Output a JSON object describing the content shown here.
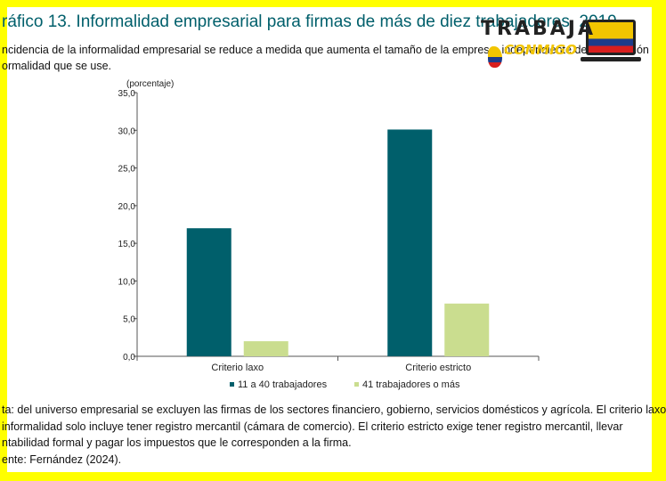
{
  "figure": {
    "title": "ráfico 13. Informalidad empresarial para firmas de más de diez trabajadores, 2019",
    "subtitle": "ncidencia de la informalidad empresarial se reduce a medida que aumenta el tamaño de la empresa, independiente de la definición ormalidad que se use.",
    "note_lines": [
      "ta: del universo empresarial se excluyen las firmas de los sectores financiero, gobierno, servicios domésticos y agrícola. El criterio laxo",
      " informalidad solo incluye tener registro mercantil (cámara de comercio). El criterio estricto exige tener registro mercantil, llevar",
      "ntabilidad formal y pagar los impuestos que le corresponden a la firma.",
      "ente: Fernández (2024)."
    ]
  },
  "logo": {
    "word": "TRABAJA",
    "sub": "CONMIGO"
  },
  "colors": {
    "frame": "#ffff00",
    "title": "#005f6b",
    "series1": "#005f6b",
    "series2": "#cadd8f"
  },
  "chart_data": {
    "type": "bar",
    "ylabel": "(porcentaje)",
    "categories": [
      "Criterio laxo",
      "Criterio estricto"
    ],
    "ylim": [
      0,
      35
    ],
    "yticks": [
      "0,0",
      "5,0",
      "10,0",
      "15,0",
      "20,0",
      "25,0",
      "30,0",
      "35,0"
    ],
    "series": [
      {
        "name": "11 a 40 trabajadores",
        "values": [
          17.0,
          30.1
        ],
        "color": "#005f6b"
      },
      {
        "name": "41 trabajadores o más",
        "values": [
          2.0,
          7.0
        ],
        "color": "#cadd8f"
      }
    ],
    "grid": false,
    "legend": "bottom"
  }
}
